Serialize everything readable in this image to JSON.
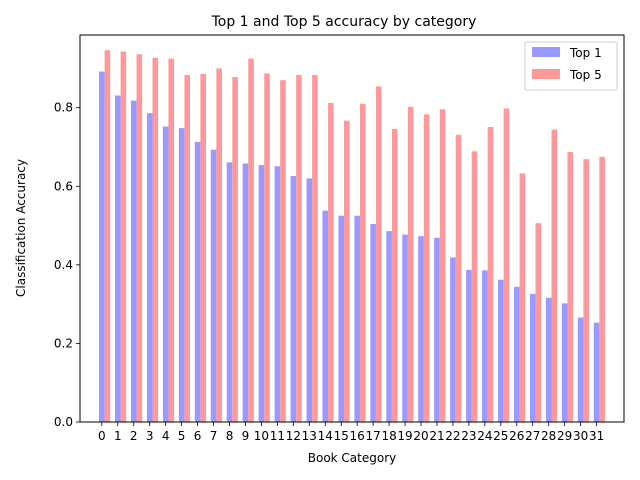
{
  "chart_data": {
    "type": "bar",
    "title": "Top 1 and Top 5 accuracy by category",
    "xlabel": "Book Category",
    "ylabel": "Classification Accuracy",
    "ylim": [
      0,
      0.985
    ],
    "yticks": [
      0.0,
      0.2,
      0.4,
      0.6,
      0.8
    ],
    "ytick_labels": [
      "0.0",
      "0.2",
      "0.4",
      "0.6",
      "0.8"
    ],
    "grid": false,
    "legend_position": "top-right",
    "categories": [
      "0",
      "1",
      "2",
      "3",
      "4",
      "5",
      "6",
      "7",
      "8",
      "9",
      "10",
      "11",
      "12",
      "13",
      "14",
      "15",
      "16",
      "17",
      "18",
      "19",
      "20",
      "21",
      "22",
      "23",
      "24",
      "25",
      "26",
      "27",
      "28",
      "29",
      "30",
      "31"
    ],
    "series": [
      {
        "name": "Top 1",
        "color": "#9999ff",
        "values": [
          0.892,
          0.831,
          0.818,
          0.786,
          0.752,
          0.748,
          0.713,
          0.693,
          0.661,
          0.658,
          0.654,
          0.651,
          0.626,
          0.62,
          0.538,
          0.525,
          0.525,
          0.504,
          0.486,
          0.477,
          0.473,
          0.469,
          0.419,
          0.387,
          0.386,
          0.362,
          0.344,
          0.326,
          0.316,
          0.302,
          0.266,
          0.253
        ]
      },
      {
        "name": "Top 5",
        "color": "#ff9999",
        "values": [
          0.946,
          0.943,
          0.936,
          0.927,
          0.925,
          0.883,
          0.886,
          0.9,
          0.878,
          0.925,
          0.887,
          0.87,
          0.883,
          0.883,
          0.812,
          0.767,
          0.81,
          0.854,
          0.746,
          0.802,
          0.783,
          0.796,
          0.731,
          0.689,
          0.751,
          0.798,
          0.633,
          0.506,
          0.744,
          0.687,
          0.669,
          0.675
        ]
      }
    ]
  }
}
